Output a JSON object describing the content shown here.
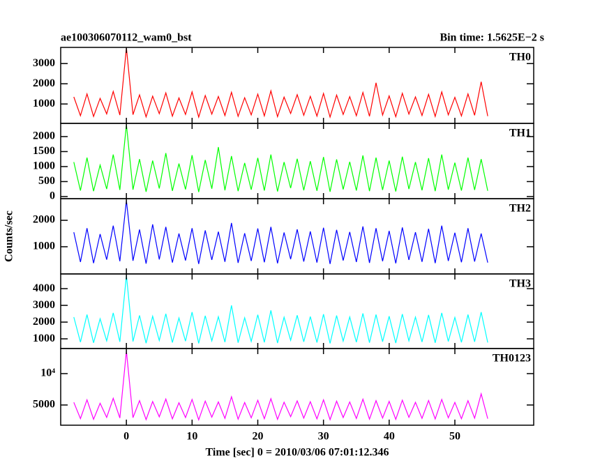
{
  "title": "ae100306070112_wam0_bst",
  "subtitle": "Bin time: 1.5625E−2 s",
  "ylabel": "Counts/sec",
  "xlabel": "Time [sec] 0 = 2010/03/06 07:01:12.346",
  "x": [
    -8,
    -7,
    -6,
    -5,
    -4,
    -3,
    -2,
    -1,
    0,
    1,
    2,
    3,
    4,
    5,
    6,
    7,
    8,
    9,
    10,
    11,
    12,
    13,
    14,
    15,
    16,
    17,
    18,
    19,
    20,
    21,
    22,
    23,
    24,
    25,
    26,
    27,
    28,
    29,
    30,
    31,
    32,
    33,
    34,
    35,
    36,
    37,
    38,
    39,
    40,
    41,
    42,
    43,
    44,
    45,
    46,
    47,
    48,
    49,
    50,
    51,
    52,
    53,
    54,
    55
  ],
  "xlim": [
    -10,
    62
  ],
  "xticks": [
    0,
    10,
    20,
    30,
    40,
    50
  ],
  "chart_data": [
    {
      "type": "line",
      "label": "TH0",
      "color": "#ff0000",
      "ylim": [
        40,
        3800
      ],
      "yticks": [
        1000,
        2000,
        3000
      ],
      "log": false,
      "values": [
        1350,
        420,
        1500,
        380,
        1280,
        510,
        1620,
        450,
        3780,
        470,
        1450,
        360,
        1390,
        520,
        1550,
        400,
        1300,
        480,
        1600,
        350,
        1420,
        500,
        1370,
        430,
        1580,
        390,
        1310,
        460,
        1490,
        410,
        1650,
        370,
        1340,
        530,
        1460,
        440,
        1380,
        400,
        1520,
        350,
        1440,
        480,
        1360,
        420,
        1570,
        390,
        2050,
        450,
        1400,
        370,
        1530,
        500,
        1350,
        430,
        1480,
        380,
        1600,
        460,
        1330,
        410,
        1500,
        440,
        2100,
        400
      ]
    },
    {
      "type": "line",
      "label": "TH1",
      "color": "#00ff00",
      "ylim": [
        -70,
        2440
      ],
      "yticks": [
        0,
        500,
        1000,
        1500,
        2000
      ],
      "log": false,
      "values": [
        1150,
        200,
        1300,
        180,
        1050,
        250,
        1400,
        220,
        2400,
        230,
        1250,
        160,
        1200,
        270,
        1450,
        190,
        1100,
        240,
        1380,
        150,
        1220,
        260,
        1650,
        210,
        1350,
        180,
        1120,
        230,
        1290,
        200,
        1400,
        170,
        1150,
        280,
        1260,
        210,
        1180,
        190,
        1320,
        160,
        1240,
        240,
        1160,
        200,
        1370,
        180,
        1300,
        220,
        1200,
        170,
        1330,
        250,
        1150,
        210,
        1280,
        180,
        1400,
        230,
        1130,
        200,
        1300,
        220,
        1250,
        190
      ]
    },
    {
      "type": "line",
      "label": "TH2",
      "color": "#0000ff",
      "ylim": [
        -30,
        2820
      ],
      "yticks": [
        1000,
        2000
      ],
      "log": false,
      "values": [
        1550,
        420,
        1700,
        380,
        1480,
        510,
        1800,
        450,
        2750,
        470,
        1650,
        360,
        1850,
        520,
        1750,
        400,
        1500,
        480,
        1700,
        350,
        1620,
        500,
        1570,
        430,
        1900,
        390,
        1510,
        460,
        1690,
        410,
        1750,
        370,
        1540,
        530,
        1660,
        440,
        1580,
        400,
        1720,
        350,
        1640,
        480,
        1560,
        420,
        1770,
        390,
        1700,
        450,
        1600,
        370,
        1730,
        500,
        1550,
        430,
        1680,
        380,
        1800,
        460,
        1530,
        410,
        1700,
        440,
        1500,
        400
      ]
    },
    {
      "type": "line",
      "label": "TH3",
      "color": "#00ffff",
      "ylim": [
        420,
        4880
      ],
      "yticks": [
        1000,
        2000,
        3000,
        4000
      ],
      "log": false,
      "values": [
        2300,
        800,
        2450,
        760,
        2200,
        880,
        2550,
        820,
        4800,
        840,
        2400,
        740,
        2350,
        900,
        2500,
        780,
        2250,
        860,
        2600,
        730,
        2380,
        880,
        2320,
        800,
        3000,
        770,
        2260,
        840,
        2440,
        790,
        2700,
        750,
        2290,
        910,
        2410,
        820,
        2330,
        780,
        2470,
        730,
        2390,
        860,
        2310,
        800,
        2520,
        770,
        2450,
        830,
        2350,
        750,
        2480,
        880,
        2300,
        810,
        2430,
        760,
        2550,
        840,
        2280,
        790,
        2450,
        820,
        2600,
        780
      ]
    },
    {
      "type": "line",
      "label": "TH0123",
      "color": "#ff00ff",
      "ylim": [
        3200,
        17400
      ],
      "yticks": [
        5000,
        {
          "value": 10000,
          "label": "10⁴"
        }
      ],
      "log": true,
      "values": [
        5300,
        3700,
        5600,
        3650,
        5200,
        3800,
        5800,
        3750,
        16500,
        3780,
        5500,
        3620,
        5400,
        3850,
        5700,
        3680,
        5250,
        3790,
        5650,
        3600,
        5450,
        3820,
        5350,
        3720,
        6000,
        3660,
        5280,
        3770,
        5550,
        3690,
        5750,
        3640,
        5320,
        3860,
        5480,
        3740,
        5380,
        3680,
        5600,
        3620,
        5440,
        3790,
        5340,
        3710,
        5680,
        3660,
        5500,
        3750,
        5420,
        3640,
        5560,
        3810,
        5300,
        3720,
        5520,
        3670,
        5650,
        3770,
        5290,
        3690,
        5500,
        3740,
        6400,
        3700
      ]
    }
  ]
}
